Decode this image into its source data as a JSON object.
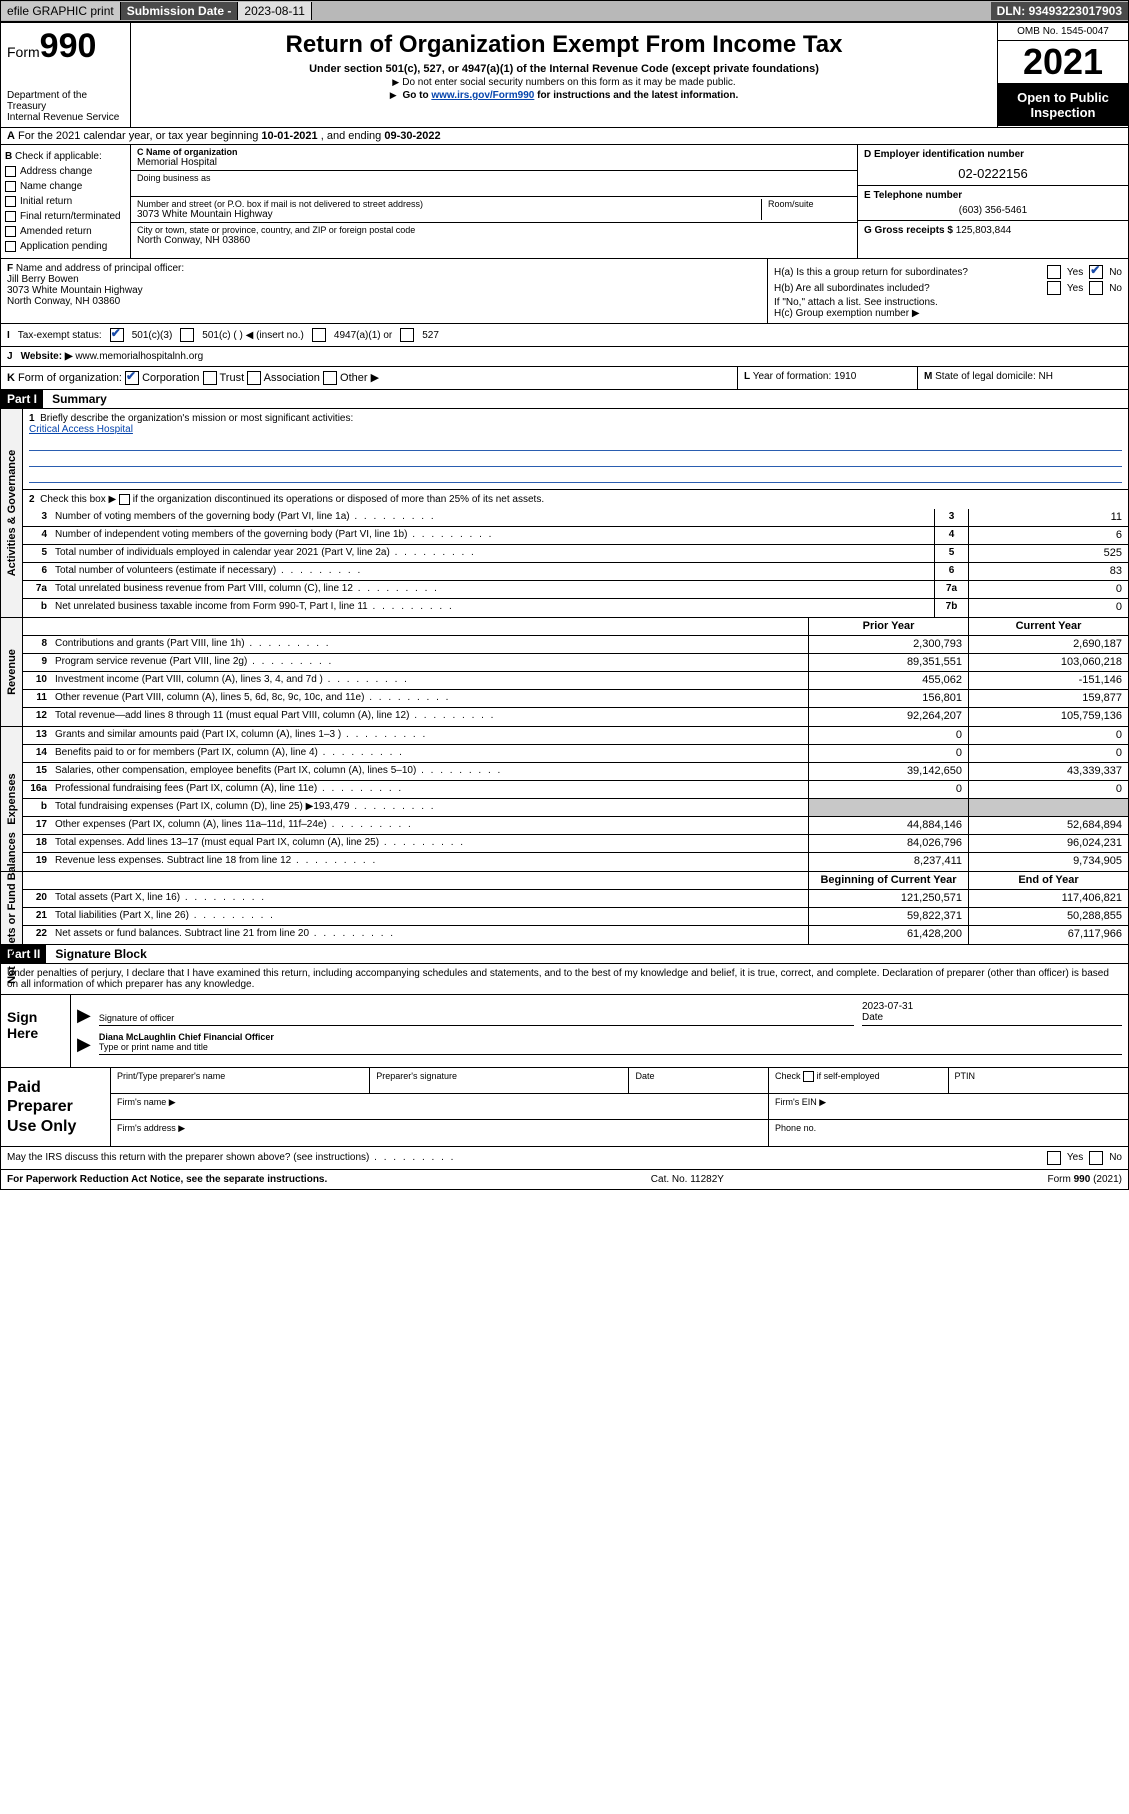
{
  "topbar": {
    "efile": "efile GRAPHIC print",
    "sub_label": "Submission Date - ",
    "sub_date": "2023-08-11",
    "dln_label": "DLN: ",
    "dln": "93493223017903"
  },
  "header": {
    "form_word": "Form",
    "form_num": "990",
    "dept": "Department of the Treasury",
    "irs": "Internal Revenue Service",
    "title": "Return of Organization Exempt From Income Tax",
    "sub1": "Under section 501(c), 527, or 4947(a)(1) of the Internal Revenue Code (except private foundations)",
    "sub2": "Do not enter social security numbers on this form as it may be made public.",
    "sub3_pre": "Go to ",
    "sub3_link": "www.irs.gov/Form990",
    "sub3_post": " for instructions and the latest information.",
    "omb": "OMB No. 1545-0047",
    "year": "2021",
    "open1": "Open to Public",
    "open2": "Inspection"
  },
  "row_a": {
    "label": "A",
    "text": " For the 2021 calendar year, or tax year beginning ",
    "begin": "10-01-2021",
    "mid": "   , and ending ",
    "end": "09-30-2022"
  },
  "col_b": {
    "label": "B",
    "intro": " Check if applicable:",
    "items": [
      "Address change",
      "Name change",
      "Initial return",
      "Final return/terminated",
      "Amended return",
      "Application pending"
    ]
  },
  "col_c": {
    "name_lbl": "C Name of organization",
    "name": "Memorial Hospital",
    "dba_lbl": "Doing business as",
    "street_lbl": "Number and street (or P.O. box if mail is not delivered to street address)",
    "room_lbl": "Room/suite",
    "street": "3073 White Mountain Highway",
    "city_lbl": "City or town, state or province, country, and ZIP or foreign postal code",
    "city": "North Conway, NH   03860"
  },
  "col_d": {
    "ein_lbl": "D Employer identification number",
    "ein": "02-0222156",
    "tel_lbl": "E Telephone number",
    "tel": "(603) 356-5461",
    "gross_lbl": "G Gross receipts $ ",
    "gross": "125,803,844"
  },
  "fh": {
    "f_lbl": "F",
    "f_text": " Name and address of principal officer:",
    "f_name": "Jill Berry Bowen",
    "f_addr1": "3073 White Mountain Highway",
    "f_addr2": "North Conway, NH   03860",
    "h_a": "H(a)  Is this a group return for subordinates?",
    "h_b": "H(b)  Are all subordinates included?",
    "h_b2": "If \"No,\" attach a list. See instructions.",
    "h_c": "H(c)  Group exemption number ▶",
    "yes": "Yes",
    "no": "No"
  },
  "row_i": {
    "lbl": "I",
    "text": "Tax-exempt status:",
    "opts": [
      "501(c)(3)",
      "501(c) (   ) ◀ (insert no.)",
      "4947(a)(1) or",
      "527"
    ]
  },
  "row_j": {
    "lbl": "J",
    "text": "Website: ▶ ",
    "url": "www.memorialhospitalnh.org"
  },
  "row_k": {
    "lbl": "K",
    "text": " Form of organization:",
    "opts": [
      "Corporation",
      "Trust",
      "Association",
      "Other ▶"
    ]
  },
  "row_l": {
    "lbl": "L",
    "text": " Year of formation: ",
    "val": "1910"
  },
  "row_m": {
    "lbl": "M",
    "text": " State of legal domicile: ",
    "val": "NH"
  },
  "part1": {
    "hdr": "Part I",
    "title": "Summary",
    "line1_lbl": "1",
    "line1": "Briefly describe the organization's mission or most significant activities:",
    "mission": "Critical Access Hospital",
    "line2_lbl": "2",
    "line2_pre": "Check this box ▶ ",
    "line2_post": "  if the organization discontinued its operations or disposed of more than 25% of its net assets.",
    "groups": {
      "ag": "Activities & Governance",
      "rev": "Revenue",
      "exp": "Expenses",
      "na": "Net Assets or Fund Balances"
    },
    "col_prior": "Prior Year",
    "col_curr": "Current Year",
    "col_beg": "Beginning of Current Year",
    "col_end": "End of Year",
    "lines_ag": [
      {
        "n": "3",
        "t": "Number of voting members of the governing body (Part VI, line 1a)",
        "box": "3",
        "v": "11"
      },
      {
        "n": "4",
        "t": "Number of independent voting members of the governing body (Part VI, line 1b)",
        "box": "4",
        "v": "6"
      },
      {
        "n": "5",
        "t": "Total number of individuals employed in calendar year 2021 (Part V, line 2a)",
        "box": "5",
        "v": "525"
      },
      {
        "n": "6",
        "t": "Total number of volunteers (estimate if necessary)",
        "box": "6",
        "v": "83"
      },
      {
        "n": "7a",
        "t": "Total unrelated business revenue from Part VIII, column (C), line 12",
        "box": "7a",
        "v": "0"
      },
      {
        "n": "b",
        "t": "Net unrelated business taxable income from Form 990-T, Part I, line 11",
        "box": "7b",
        "v": "0"
      }
    ],
    "lines_rev": [
      {
        "n": "8",
        "t": "Contributions and grants (Part VIII, line 1h)",
        "p": "2,300,793",
        "c": "2,690,187"
      },
      {
        "n": "9",
        "t": "Program service revenue (Part VIII, line 2g)",
        "p": "89,351,551",
        "c": "103,060,218"
      },
      {
        "n": "10",
        "t": "Investment income (Part VIII, column (A), lines 3, 4, and 7d )",
        "p": "455,062",
        "c": "-151,146"
      },
      {
        "n": "11",
        "t": "Other revenue (Part VIII, column (A), lines 5, 6d, 8c, 9c, 10c, and 11e)",
        "p": "156,801",
        "c": "159,877"
      },
      {
        "n": "12",
        "t": "Total revenue—add lines 8 through 11 (must equal Part VIII, column (A), line 12)",
        "p": "92,264,207",
        "c": "105,759,136"
      }
    ],
    "lines_exp": [
      {
        "n": "13",
        "t": "Grants and similar amounts paid (Part IX, column (A), lines 1–3 )",
        "p": "0",
        "c": "0"
      },
      {
        "n": "14",
        "t": "Benefits paid to or for members (Part IX, column (A), line 4)",
        "p": "0",
        "c": "0"
      },
      {
        "n": "15",
        "t": "Salaries, other compensation, employee benefits (Part IX, column (A), lines 5–10)",
        "p": "39,142,650",
        "c": "43,339,337"
      },
      {
        "n": "16a",
        "t": "Professional fundraising fees (Part IX, column (A), line 11e)",
        "p": "0",
        "c": "0"
      },
      {
        "n": "b",
        "t": "Total fundraising expenses (Part IX, column (D), line 25) ▶193,479",
        "p": "",
        "c": "",
        "shade": true
      },
      {
        "n": "17",
        "t": "Other expenses (Part IX, column (A), lines 11a–11d, 11f–24e)",
        "p": "44,884,146",
        "c": "52,684,894"
      },
      {
        "n": "18",
        "t": "Total expenses. Add lines 13–17 (must equal Part IX, column (A), line 25)",
        "p": "84,026,796",
        "c": "96,024,231"
      },
      {
        "n": "19",
        "t": "Revenue less expenses. Subtract line 18 from line 12",
        "p": "8,237,411",
        "c": "9,734,905"
      }
    ],
    "lines_na": [
      {
        "n": "20",
        "t": "Total assets (Part X, line 16)",
        "p": "121,250,571",
        "c": "117,406,821"
      },
      {
        "n": "21",
        "t": "Total liabilities (Part X, line 26)",
        "p": "59,822,371",
        "c": "50,288,855"
      },
      {
        "n": "22",
        "t": "Net assets or fund balances. Subtract line 21 from line 20",
        "p": "61,428,200",
        "c": "67,117,966"
      }
    ]
  },
  "part2": {
    "hdr": "Part II",
    "title": "Signature Block",
    "decl": "Under penalties of perjury, I declare that I have examined this return, including accompanying schedules and statements, and to the best of my knowledge and belief, it is true, correct, and complete. Declaration of preparer (other than officer) is based on all information of which preparer has any knowledge.",
    "sign": "Sign Here",
    "sig_officer": "Signature of officer",
    "sig_date_lbl": "Date",
    "sig_date": "2023-07-31",
    "sig_name": "Diana McLaughlin  Chief Financial Officer",
    "sig_type": "Type or print name and title",
    "prep": "Paid Preparer Use Only",
    "p_name": "Print/Type preparer's name",
    "p_sig": "Preparer's signature",
    "p_date": "Date",
    "p_check": "Check",
    "p_self": "if self-employed",
    "p_ptin": "PTIN",
    "p_firm": "Firm's name   ▶",
    "p_ein": "Firm's EIN ▶",
    "p_addr": "Firm's address ▶",
    "p_phone": "Phone no."
  },
  "footer": {
    "q": "May the IRS discuss this return with the preparer shown above? (see instructions)",
    "yes": "Yes",
    "no": "No",
    "pra": "For Paperwork Reduction Act Notice, see the separate instructions.",
    "cat": "Cat. No. 11282Y",
    "form": "Form 990 (2021)"
  },
  "colors": {
    "link": "#0645ad",
    "check": "#1a4ba8",
    "topbar_dark": "#4a4a4a",
    "shade": "#c8c8c8"
  }
}
